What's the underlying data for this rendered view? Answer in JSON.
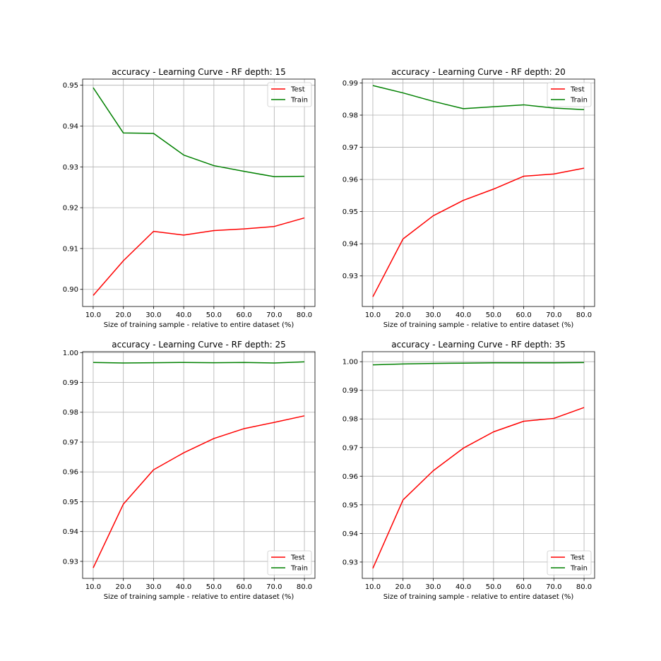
{
  "colors": {
    "test": "#ff0000",
    "train": "#008000",
    "grid": "#b0b0b0",
    "axis": "#000000"
  },
  "chart_data": [
    {
      "type": "line",
      "title": "accuracy - Learning Curve - RF depth: 15",
      "xlabel": "Size of training sample - relative to entire dataset (%)",
      "ylabel": "",
      "x": [
        10.0,
        20.0,
        30.0,
        40.0,
        50.0,
        60.0,
        70.0,
        80.0
      ],
      "x_tick_labels": [
        "10.0",
        "20.0",
        "30.0",
        "40.0",
        "50.0",
        "60.0",
        "70.0",
        "80.0"
      ],
      "xlim": [
        6.5,
        83.5
      ],
      "ylim": [
        0.8958,
        0.9515
      ],
      "y_ticks": [
        0.9,
        0.91,
        0.92,
        0.93,
        0.94,
        0.95
      ],
      "y_tick_labels": [
        "0.90",
        "0.91",
        "0.92",
        "0.93",
        "0.94",
        "0.95"
      ],
      "grid": true,
      "legend_position": "top-right",
      "series": [
        {
          "name": "Test",
          "color": "#ff0000",
          "values": [
            0.8985,
            0.907,
            0.9142,
            0.9133,
            0.9144,
            0.9148,
            0.9154,
            0.9175
          ]
        },
        {
          "name": "Train",
          "color": "#008000",
          "values": [
            0.9494,
            0.9383,
            0.9382,
            0.9329,
            0.9303,
            0.9289,
            0.9276,
            0.9277
          ]
        }
      ]
    },
    {
      "type": "line",
      "title": "accuracy - Learning Curve - RF depth: 20",
      "xlabel": "Size of training sample - relative to entire dataset (%)",
      "ylabel": "",
      "x": [
        10.0,
        20.0,
        30.0,
        40.0,
        50.0,
        60.0,
        70.0,
        80.0
      ],
      "x_tick_labels": [
        "10.0",
        "20.0",
        "30.0",
        "40.0",
        "50.0",
        "60.0",
        "70.0",
        "80.0"
      ],
      "xlim": [
        6.5,
        83.5
      ],
      "ylim": [
        0.9205,
        0.9912
      ],
      "y_ticks": [
        0.93,
        0.94,
        0.95,
        0.96,
        0.97,
        0.98,
        0.99
      ],
      "y_tick_labels": [
        "0.93",
        "0.94",
        "0.95",
        "0.96",
        "0.97",
        "0.98",
        "0.99"
      ],
      "grid": true,
      "legend_position": "top-right",
      "series": [
        {
          "name": "Test",
          "color": "#ff0000",
          "values": [
            0.9235,
            0.9415,
            0.9487,
            0.9535,
            0.957,
            0.961,
            0.9617,
            0.9635
          ]
        },
        {
          "name": "Train",
          "color": "#008000",
          "values": [
            0.9892,
            0.9869,
            0.9843,
            0.982,
            0.9826,
            0.9832,
            0.9822,
            0.9817
          ]
        }
      ]
    },
    {
      "type": "line",
      "title": "accuracy - Learning Curve - RF depth: 25",
      "xlabel": "Size of training sample - relative to entire dataset (%)",
      "ylabel": "",
      "x": [
        10.0,
        20.0,
        30.0,
        40.0,
        50.0,
        60.0,
        70.0,
        80.0
      ],
      "x_tick_labels": [
        "10.0",
        "20.0",
        "30.0",
        "40.0",
        "50.0",
        "60.0",
        "70.0",
        "80.0"
      ],
      "xlim": [
        6.5,
        83.5
      ],
      "ylim": [
        0.9243,
        1.0003
      ],
      "y_ticks": [
        0.93,
        0.94,
        0.95,
        0.96,
        0.97,
        0.98,
        0.99,
        1.0
      ],
      "y_tick_labels": [
        "0.93",
        "0.94",
        "0.95",
        "0.96",
        "0.97",
        "0.98",
        "0.99",
        "1.00"
      ],
      "grid": true,
      "legend_position": "bottom-right",
      "series": [
        {
          "name": "Test",
          "color": "#ff0000",
          "values": [
            0.9278,
            0.9492,
            0.9607,
            0.9664,
            0.9712,
            0.9745,
            0.9766,
            0.9788
          ]
        },
        {
          "name": "Train",
          "color": "#008000",
          "values": [
            0.9967,
            0.9965,
            0.9966,
            0.9967,
            0.9966,
            0.9967,
            0.9965,
            0.9969
          ]
        }
      ]
    },
    {
      "type": "line",
      "title": "accuracy - Learning Curve - RF depth: 35",
      "xlabel": "Size of training sample - relative to entire dataset (%)",
      "ylabel": "",
      "x": [
        10.0,
        20.0,
        30.0,
        40.0,
        50.0,
        60.0,
        70.0,
        80.0
      ],
      "x_tick_labels": [
        "10.0",
        "20.0",
        "30.0",
        "40.0",
        "50.0",
        "60.0",
        "70.0",
        "80.0"
      ],
      "xlim": [
        6.5,
        83.5
      ],
      "ylim": [
        0.9243,
        1.0035
      ],
      "y_ticks": [
        0.93,
        0.94,
        0.95,
        0.96,
        0.97,
        0.98,
        0.99,
        1.0
      ],
      "y_tick_labels": [
        "0.93",
        "0.94",
        "0.95",
        "0.96",
        "0.97",
        "0.98",
        "0.99",
        "1.00"
      ],
      "grid": true,
      "legend_position": "bottom-right",
      "series": [
        {
          "name": "Test",
          "color": "#ff0000",
          "values": [
            0.9278,
            0.9517,
            0.9619,
            0.9698,
            0.9755,
            0.9792,
            0.9802,
            0.984
          ]
        },
        {
          "name": "Train",
          "color": "#008000",
          "values": [
            0.9989,
            0.9992,
            0.9994,
            0.9995,
            0.9996,
            0.9996,
            0.9996,
            0.9997
          ]
        }
      ]
    }
  ]
}
